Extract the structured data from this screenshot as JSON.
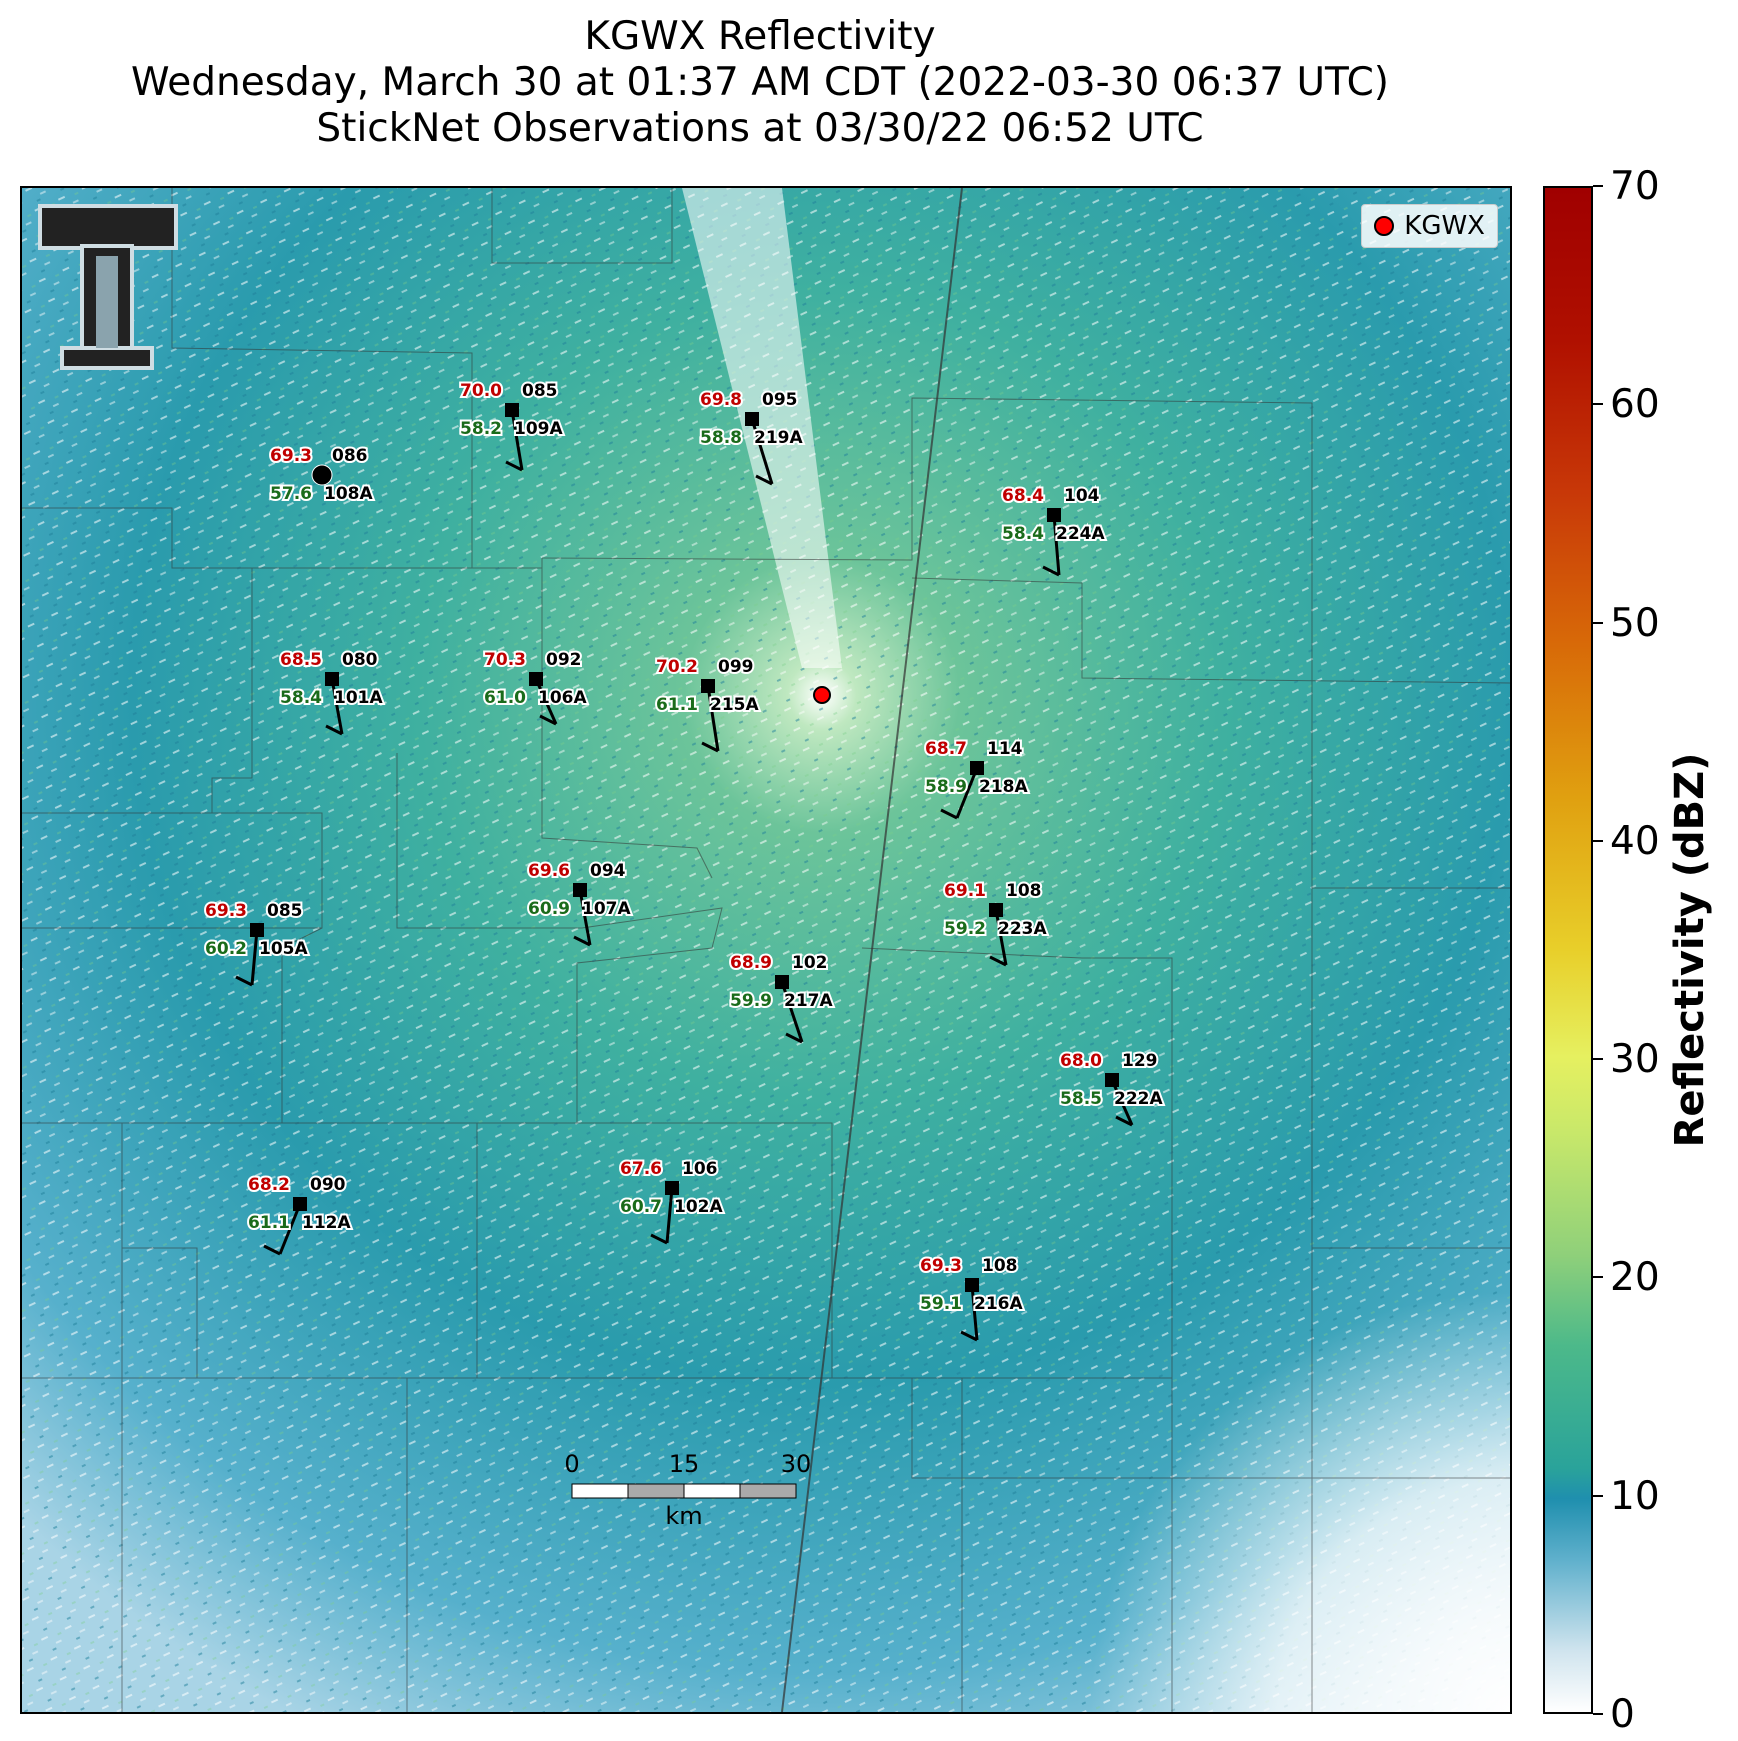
{
  "title": {
    "line1": "KGWX Reflectivity",
    "line2": "Wednesday, March 30 at 01:37 AM CDT (2022-03-30 06:37 UTC)",
    "line3": "StickNet Observations at 03/30/22 06:52 UTC"
  },
  "legend": {
    "label": "KGWX",
    "marker_color": "#ff0000"
  },
  "colorbar": {
    "label": "Reflectivity (dBZ)",
    "ticks": [
      "0",
      "10",
      "20",
      "30",
      "40",
      "50",
      "60",
      "70"
    ],
    "range": [
      0,
      70
    ]
  },
  "scale_bar": {
    "ticks": [
      "0",
      "15",
      "30"
    ],
    "unit": "km"
  },
  "colors": {
    "background_reflectivity": "#2a98a8",
    "temperature": "#c00000",
    "dewpoint": "#1a6b1a"
  },
  "stations": [
    {
      "id": "109A",
      "temp": "70.0",
      "dew": "58.2",
      "pressure": "085"
    },
    {
      "id": "219A",
      "temp": "69.8",
      "dew": "58.8",
      "pressure": "095"
    },
    {
      "id": "108A",
      "temp": "69.3",
      "dew": "57.6",
      "pressure": "086"
    },
    {
      "id": "224A",
      "temp": "68.4",
      "dew": "58.4",
      "pressure": "104"
    },
    {
      "id": "101A",
      "temp": "68.5",
      "dew": "58.4",
      "pressure": "080"
    },
    {
      "id": "106A",
      "temp": "70.3",
      "dew": "61.0",
      "pressure": "092"
    },
    {
      "id": "215A",
      "temp": "70.2",
      "dew": "61.1",
      "pressure": "099"
    },
    {
      "id": "218A",
      "temp": "68.7",
      "dew": "58.9",
      "pressure": "114"
    },
    {
      "id": "107A",
      "temp": "69.6",
      "dew": "60.9",
      "pressure": "094"
    },
    {
      "id": "223A",
      "temp": "69.1",
      "dew": "59.2",
      "pressure": "108"
    },
    {
      "id": "105A",
      "temp": "69.3",
      "dew": "60.2",
      "pressure": "085"
    },
    {
      "id": "217A",
      "temp": "68.9",
      "dew": "59.9",
      "pressure": "102"
    },
    {
      "id": "222A",
      "temp": "68.0",
      "dew": "58.5",
      "pressure": "129"
    },
    {
      "id": "102A",
      "temp": "67.6",
      "dew": "60.7",
      "pressure": "106"
    },
    {
      "id": "112A",
      "temp": "68.2",
      "dew": "61.1",
      "pressure": "090"
    },
    {
      "id": "216A",
      "temp": "69.3",
      "dew": "59.1",
      "pressure": "108"
    }
  ]
}
